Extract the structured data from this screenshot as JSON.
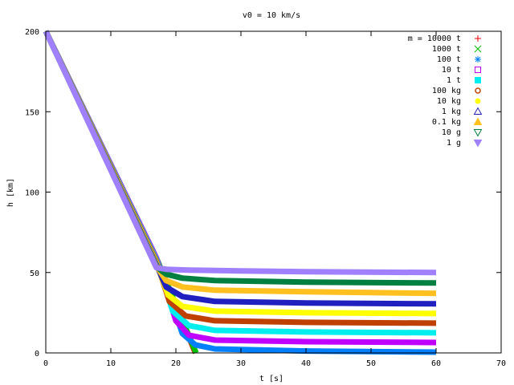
{
  "chart_data": {
    "type": "line",
    "title": "v0 = 10 km/s",
    "xlabel": "t [s]",
    "ylabel": "h [km]",
    "xlim": [
      0,
      70
    ],
    "ylim": [
      0,
      200
    ],
    "x_ticks": [
      0,
      10,
      20,
      30,
      40,
      50,
      60,
      70
    ],
    "y_ticks": [
      0,
      50,
      100,
      150,
      200
    ],
    "x_tick_labels": [
      "0",
      "10",
      "20",
      "30",
      "40",
      "50",
      "60",
      "70"
    ],
    "y_tick_labels": [
      "0",
      "50",
      "100",
      "150",
      "200"
    ],
    "grid": false,
    "legend_position": "top-right",
    "series": [
      {
        "name": "m = 10000 t",
        "color": "#ff0000",
        "marker": "plus",
        "points": [
          [
            0,
            200
          ],
          [
            17,
            59
          ],
          [
            23,
            0
          ]
        ]
      },
      {
        "name": "1000 t",
        "color": "#00c000",
        "marker": "cross",
        "points": [
          [
            0,
            200
          ],
          [
            17,
            59
          ],
          [
            23.1,
            0
          ]
        ]
      },
      {
        "name": "100 t",
        "color": "#0080ff",
        "marker": "star",
        "points": [
          [
            0,
            200
          ],
          [
            17,
            59
          ],
          [
            21,
            12
          ],
          [
            23,
            5
          ],
          [
            26,
            2.5
          ],
          [
            40,
            1.2
          ],
          [
            60,
            0.5
          ]
        ]
      },
      {
        "name": "10 t",
        "color": "#c000ff",
        "marker": "square",
        "points": [
          [
            0,
            200
          ],
          [
            17,
            59
          ],
          [
            20,
            20
          ],
          [
            22,
            11
          ],
          [
            26,
            8
          ],
          [
            40,
            7
          ],
          [
            60,
            6.5
          ]
        ]
      },
      {
        "name": "1 t",
        "color": "#00eeee",
        "marker": "square-filled",
        "points": [
          [
            0,
            200
          ],
          [
            17,
            58
          ],
          [
            19.5,
            26
          ],
          [
            22,
            17
          ],
          [
            26,
            14
          ],
          [
            40,
            13
          ],
          [
            60,
            12.5
          ]
        ]
      },
      {
        "name": "100 kg",
        "color": "#c04000",
        "marker": "circle",
        "points": [
          [
            0,
            200
          ],
          [
            17,
            57
          ],
          [
            19,
            32
          ],
          [
            21.5,
            23
          ],
          [
            26,
            20
          ],
          [
            40,
            19
          ],
          [
            60,
            18.5
          ]
        ]
      },
      {
        "name": "10 kg",
        "color": "#ffff00",
        "marker": "circle-filled",
        "points": [
          [
            0,
            200
          ],
          [
            17,
            56
          ],
          [
            18.8,
            36
          ],
          [
            21,
            29
          ],
          [
            26,
            26
          ],
          [
            40,
            25
          ],
          [
            60,
            24.5
          ]
        ]
      },
      {
        "name": "1 kg",
        "color": "#2020c0",
        "marker": "triangle",
        "points": [
          [
            0,
            200
          ],
          [
            17,
            55
          ],
          [
            18.5,
            41
          ],
          [
            21,
            35
          ],
          [
            26,
            32
          ],
          [
            40,
            31
          ],
          [
            60,
            30.5
          ]
        ]
      },
      {
        "name": "0.1 kg",
        "color": "#ffc020",
        "marker": "triangle-filled",
        "points": [
          [
            0,
            200
          ],
          [
            17,
            54
          ],
          [
            18.5,
            45
          ],
          [
            21,
            41
          ],
          [
            26,
            39
          ],
          [
            40,
            38
          ],
          [
            60,
            37
          ]
        ]
      },
      {
        "name": "10 g",
        "color": "#008040",
        "marker": "triangle-down",
        "points": [
          [
            0,
            200
          ],
          [
            17,
            53.5
          ],
          [
            18.5,
            49
          ],
          [
            21,
            46.5
          ],
          [
            26,
            45
          ],
          [
            40,
            44
          ],
          [
            60,
            43.5
          ]
        ]
      },
      {
        "name": "1 g",
        "color": "#a080ff",
        "marker": "triangle-down-filled",
        "points": [
          [
            0,
            200
          ],
          [
            17,
            53
          ],
          [
            18.5,
            52
          ],
          [
            22,
            51.5
          ],
          [
            30,
            51
          ],
          [
            40,
            50.5
          ],
          [
            60,
            50
          ]
        ]
      }
    ]
  }
}
